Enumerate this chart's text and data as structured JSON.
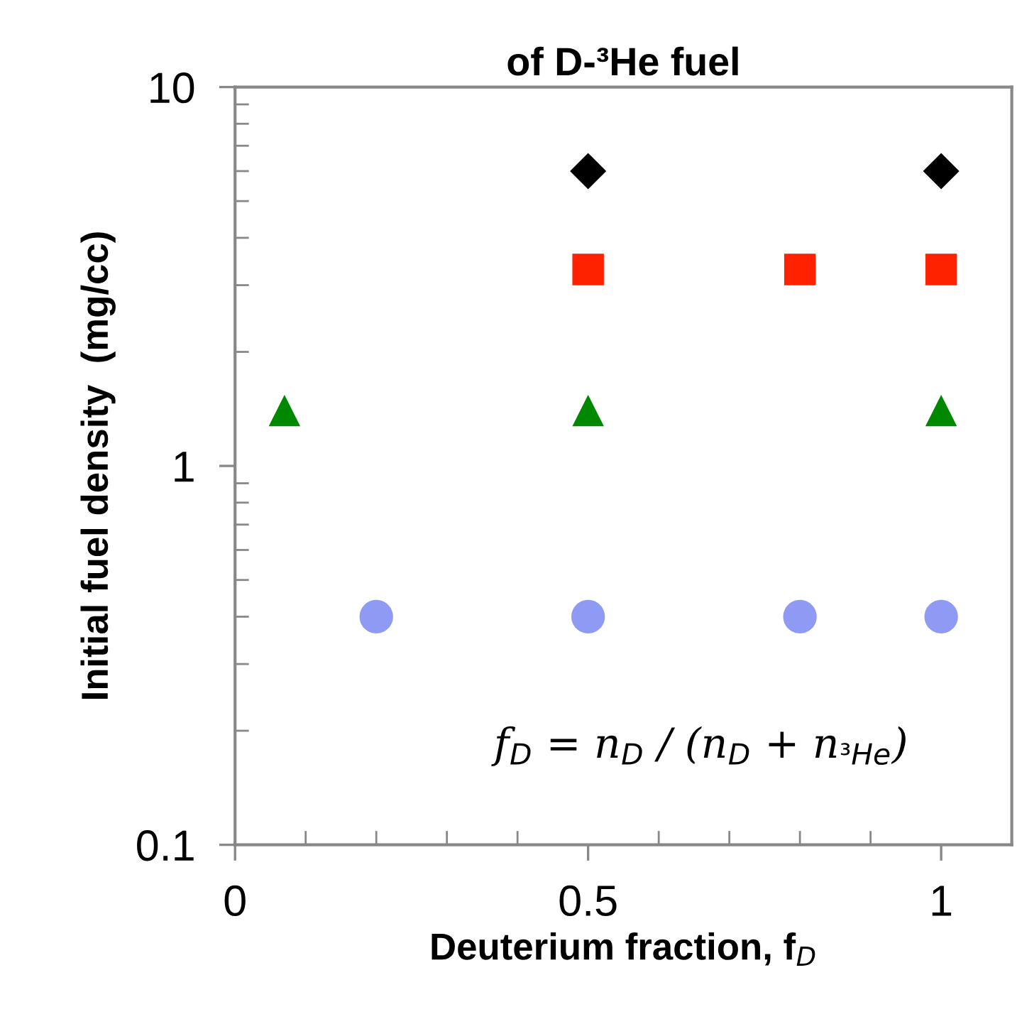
{
  "chart_data": {
    "type": "scatter",
    "title": "of D-³He fuel",
    "xlabel": "Deuterium fraction, f$_{D}$",
    "ylabel": "Initial fuel density  (mg/cc)",
    "log": "y",
    "xlim": [
      0,
      1.1
    ],
    "ylim": [
      0.1,
      10
    ],
    "xticks": [
      0,
      {
        "value": 0.1,
        "label": null
      },
      {
        "value": 0.2,
        "label": null
      },
      {
        "value": 0.3,
        "label": null
      },
      {
        "value": 0.4,
        "label": null
      },
      0.5,
      {
        "value": 0.6,
        "label": null
      },
      {
        "value": 0.7,
        "label": null
      },
      {
        "value": 0.8,
        "label": null
      },
      {
        "value": 0.9,
        "label": null
      },
      1
    ],
    "yticks": [
      0.1,
      1,
      10
    ],
    "grid": false,
    "legend": false,
    "annotations": [
      "f$_{D}$ = n$_{D}$ / (n$_{D}$ + n$_{³He}$)"
    ],
    "series": [
      {
        "color": "#000000",
        "marker": "diamond",
        "x": [
          0.5,
          1
        ],
        "values": [
          6.0,
          6.0
        ]
      },
      {
        "color": "#ff2200",
        "marker": "square",
        "x": [
          0.5,
          0.8,
          1
        ],
        "values": [
          3.3,
          3.3,
          3.3
        ]
      },
      {
        "color": "#008800",
        "marker": "triangle",
        "x": [
          0.07,
          0.5,
          1
        ],
        "values": [
          1.4,
          1.4,
          1.4
        ]
      },
      {
        "color": "#8f9af5",
        "marker": "circle",
        "x": [
          0.2,
          0.5,
          0.8,
          1
        ],
        "values": [
          0.4,
          0.4,
          0.4,
          0.4
        ]
      }
    ]
  }
}
